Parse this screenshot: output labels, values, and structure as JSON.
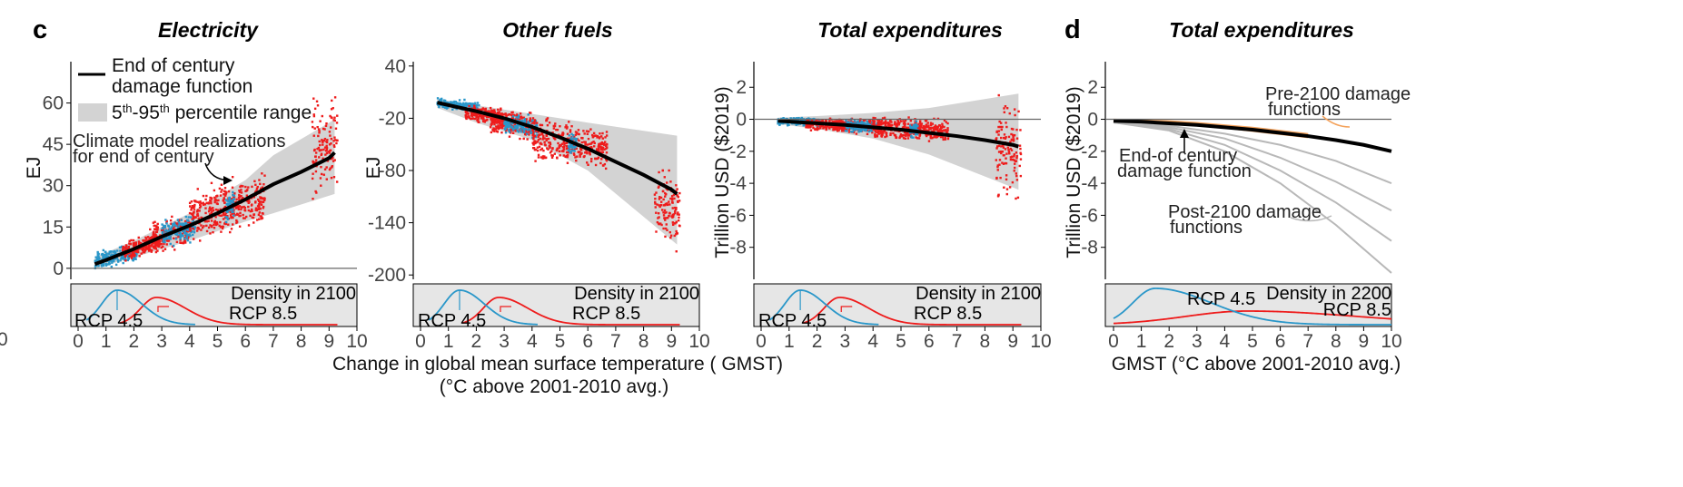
{
  "panel_letters": {
    "c": "c",
    "d": "d"
  },
  "x_axis_common_label_line1": "Change in global mean surface temperature (  GMST)",
  "x_axis_common_label_line2": "(°C above 2001-2010 avg.)",
  "stray_tick": "0",
  "colors": {
    "rcp45": "#2a97c9",
    "rcp85": "#ee1c1c",
    "band": "#d3d3d3",
    "damage": "#000000",
    "pre2100": "#f4a25b",
    "post2100": "#b8b8b8",
    "density_bg": "#e6e6e6"
  },
  "legend": {
    "damage_line_1": "End of century",
    "damage_line_2": "damage function",
    "range_label": "5th-95th percentile range",
    "range_pre": "5",
    "range_sup1": "th",
    "range_mid": "-95",
    "range_sup2": "th",
    "range_post": " percentile range",
    "climate_line_1": "Climate model realizations",
    "climate_line_2": "for end of century"
  },
  "chart_data": [
    {
      "id": "electricity",
      "type": "scatter",
      "title": "Electricity",
      "ylabel": "EJ",
      "xlabel": "",
      "xlim": [
        0,
        10
      ],
      "ylim": [
        -4,
        75
      ],
      "x_ticks": [
        "0",
        "1",
        "2",
        "3",
        "4",
        "5",
        "6",
        "7",
        "8",
        "9",
        "10"
      ],
      "y_ticks": [
        0,
        15,
        30,
        45,
        60
      ],
      "y_tick_labels": [
        "0",
        "15",
        "30",
        "45",
        "60"
      ],
      "zero_line": true,
      "damage_function": {
        "x": [
          0.6,
          1,
          2,
          3,
          4,
          5,
          6,
          7,
          8,
          9,
          9.2
        ],
        "y": [
          1.5,
          3,
          7,
          11.5,
          15.5,
          20,
          25,
          30.5,
          35,
          40,
          42
        ]
      },
      "band_upper": {
        "x": [
          0.6,
          2,
          4,
          6,
          7,
          9.2
        ],
        "y": [
          4,
          10,
          20,
          32,
          41,
          54
        ]
      },
      "band_lower": {
        "x": [
          0.6,
          2,
          4,
          6,
          7,
          9.2
        ],
        "y": [
          0,
          4,
          10,
          17,
          20,
          27
        ]
      },
      "clusters": [
        {
          "x": [
            0.6,
            2.1
          ],
          "y": [
            0,
            8
          ],
          "rcp": "45"
        },
        {
          "x": [
            1.6,
            3.0
          ],
          "y": [
            2,
            12
          ],
          "rcp": "85"
        },
        {
          "x": [
            2.5,
            4.0
          ],
          "y": [
            6,
            20
          ],
          "rcp": "85"
        },
        {
          "x": [
            3.0,
            4.2
          ],
          "y": [
            8,
            20
          ],
          "rcp": "45"
        },
        {
          "x": [
            4.0,
            6.7
          ],
          "y": [
            10,
            35
          ],
          "rcp": "85"
        },
        {
          "x": [
            5.3,
            5.6
          ],
          "y": [
            15,
            33
          ],
          "rcp": "45"
        },
        {
          "x": [
            8.4,
            9.3
          ],
          "y": [
            24,
            70
          ],
          "rcp": "85"
        }
      ],
      "density_title": "Density in 2100",
      "density_rcp45": "RCP 4.5",
      "density_rcp85": "RCP 8.5"
    },
    {
      "id": "other-fuels",
      "type": "scatter",
      "title": "Other fuels",
      "ylabel": "EJ",
      "xlabel": "",
      "xlim": [
        0,
        10
      ],
      "ylim": [
        -205,
        45
      ],
      "x_ticks": [
        "0",
        "1",
        "2",
        "3",
        "4",
        "5",
        "6",
        "7",
        "8",
        "9",
        "10"
      ],
      "y_ticks": [
        40,
        -20,
        -80,
        -140,
        -200
      ],
      "y_tick_labels": [
        "40",
        "-20",
        "-80",
        "-140",
        "-200"
      ],
      "zero_line": false,
      "damage_function": {
        "x": [
          0.6,
          2,
          3,
          4,
          5,
          6,
          7,
          8,
          9,
          9.2
        ],
        "y": [
          -2,
          -12,
          -20,
          -30,
          -42,
          -55,
          -70,
          -85,
          -102,
          -107
        ]
      },
      "band_upper": {
        "x": [
          0.6,
          2,
          4,
          6,
          9.2
        ],
        "y": [
          2,
          -5,
          -15,
          -25,
          -40
        ]
      },
      "band_lower": {
        "x": [
          0.6,
          2,
          4,
          6,
          9.2
        ],
        "y": [
          -8,
          -25,
          -45,
          -80,
          -165
        ]
      },
      "clusters": [
        {
          "x": [
            0.6,
            2.1
          ],
          "y": [
            -10,
            5
          ],
          "rcp": "45"
        },
        {
          "x": [
            1.6,
            3.0
          ],
          "y": [
            -30,
            -5
          ],
          "rcp": "85"
        },
        {
          "x": [
            2.5,
            4.0
          ],
          "y": [
            -50,
            -10
          ],
          "rcp": "85"
        },
        {
          "x": [
            3.0,
            4.2
          ],
          "y": [
            -45,
            -15
          ],
          "rcp": "45"
        },
        {
          "x": [
            4.0,
            6.7
          ],
          "y": [
            -85,
            -20
          ],
          "rcp": "85"
        },
        {
          "x": [
            5.3,
            5.6
          ],
          "y": [
            -70,
            -35
          ],
          "rcp": "45"
        },
        {
          "x": [
            8.4,
            9.3
          ],
          "y": [
            -195,
            -80
          ],
          "rcp": "85"
        }
      ],
      "density_title": "Density in 2100",
      "density_rcp45": "RCP 4.5",
      "density_rcp85": "RCP 8.5"
    },
    {
      "id": "total-expenditures-c",
      "type": "scatter",
      "title": "Total expenditures",
      "ylabel": "Trillion USD ($2019)",
      "xlabel": "",
      "xlim": [
        0,
        10
      ],
      "ylim": [
        -10,
        3.6
      ],
      "x_ticks": [
        "0",
        "1",
        "2",
        "3",
        "4",
        "5",
        "6",
        "7",
        "8",
        "9",
        "10"
      ],
      "y_ticks": [
        2,
        0,
        -2,
        -4,
        -6,
        -8
      ],
      "y_tick_labels": [
        "2",
        "0",
        "-2",
        "-4",
        "-6",
        "-8"
      ],
      "zero_line": true,
      "damage_function": {
        "x": [
          0.6,
          2,
          3,
          4,
          5,
          6,
          7,
          8,
          9,
          9.2
        ],
        "y": [
          -0.1,
          -0.25,
          -0.35,
          -0.5,
          -0.65,
          -0.85,
          -1.05,
          -1.3,
          -1.6,
          -1.7
        ]
      },
      "band_upper": {
        "x": [
          0.6,
          2,
          4,
          6,
          9.2
        ],
        "y": [
          0.1,
          0.2,
          0.4,
          0.7,
          1.6
        ]
      },
      "band_lower": {
        "x": [
          0.6,
          2,
          4,
          6,
          9.2
        ],
        "y": [
          -0.3,
          -0.6,
          -1.2,
          -2.2,
          -4.4
        ]
      },
      "clusters": [
        {
          "x": [
            0.6,
            2.1
          ],
          "y": [
            -0.5,
            0.2
          ],
          "rcp": "45"
        },
        {
          "x": [
            1.6,
            3.0
          ],
          "y": [
            -0.8,
            0.1
          ],
          "rcp": "85"
        },
        {
          "x": [
            2.5,
            4.0
          ],
          "y": [
            -1.0,
            0.2
          ],
          "rcp": "85"
        },
        {
          "x": [
            3.0,
            4.2
          ],
          "y": [
            -0.9,
            0.1
          ],
          "rcp": "45"
        },
        {
          "x": [
            4.0,
            6.7
          ],
          "y": [
            -1.5,
            0.4
          ],
          "rcp": "85"
        },
        {
          "x": [
            5.3,
            5.6
          ],
          "y": [
            -1.2,
            0.2
          ],
          "rcp": "45"
        },
        {
          "x": [
            8.4,
            9.3
          ],
          "y": [
            -6.5,
            1.5
          ],
          "rcp": "85"
        }
      ],
      "density_title": "Density in 2100",
      "density_rcp45": "RCP 4.5",
      "density_rcp85": "RCP 8.5"
    },
    {
      "id": "total-expenditures-d",
      "type": "line",
      "title": "Total expenditures",
      "ylabel": "Trillion USD ($2019)",
      "xlabel": "GMST (°C above 2001-2010 avg.)",
      "xlim": [
        0,
        10
      ],
      "ylim": [
        -10,
        3.6
      ],
      "x_ticks": [
        "0",
        "1",
        "2",
        "3",
        "4",
        "5",
        "6",
        "7",
        "8",
        "9",
        "10"
      ],
      "y_ticks": [
        2,
        0,
        -2,
        -4,
        -6,
        -8
      ],
      "y_tick_labels": [
        "2",
        "0",
        "-2",
        "-4",
        "-6",
        "-8"
      ],
      "zero_line": true,
      "end_of_century_function": {
        "x": [
          0,
          1,
          2,
          3,
          4,
          5,
          6,
          7,
          8,
          9,
          10
        ],
        "y": [
          -0.1,
          -0.15,
          -0.25,
          -0.35,
          -0.5,
          -0.65,
          -0.85,
          -1.05,
          -1.3,
          -1.6,
          -2.0
        ]
      },
      "pre_2100_functions": [
        {
          "x": [
            0,
            1,
            2,
            3,
            4,
            5,
            6,
            7
          ],
          "y": [
            -0.05,
            -0.1,
            -0.15,
            -0.25,
            -0.4,
            -0.55,
            -0.75,
            -0.95
          ]
        },
        {
          "x": [
            0,
            1,
            2,
            3,
            4,
            5,
            6,
            7
          ],
          "y": [
            -0.1,
            -0.15,
            -0.25,
            -0.35,
            -0.5,
            -0.7,
            -0.9,
            -1.1
          ]
        }
      ],
      "post_2100_functions": [
        {
          "x": [
            0,
            2,
            4,
            6,
            8,
            10
          ],
          "y": [
            -0.2,
            -0.4,
            -0.9,
            -1.6,
            -2.6,
            -4.0
          ]
        },
        {
          "x": [
            0,
            2,
            4,
            6,
            8,
            10
          ],
          "y": [
            -0.2,
            -0.5,
            -1.2,
            -2.4,
            -3.9,
            -5.7
          ]
        },
        {
          "x": [
            0,
            2,
            4,
            6,
            8,
            10
          ],
          "y": [
            -0.2,
            -0.6,
            -1.6,
            -3.2,
            -5.2,
            -7.6
          ]
        },
        {
          "x": [
            0,
            2,
            4,
            6,
            8,
            10
          ],
          "y": [
            -0.2,
            -0.7,
            -2.0,
            -4.0,
            -6.6,
            -9.6
          ]
        }
      ],
      "annotations": {
        "pre_line_1": "Pre-2100 damage",
        "pre_line_2": "functions",
        "eoc_line_1": "End-of century",
        "eoc_line_2": "damage function",
        "post_line_1": "Post-2100 damage",
        "post_line_2": "functions"
      },
      "density_title": "Density in 2200",
      "density_rcp45": "RCP 4.5",
      "density_rcp85": "RCP 8.5"
    }
  ]
}
